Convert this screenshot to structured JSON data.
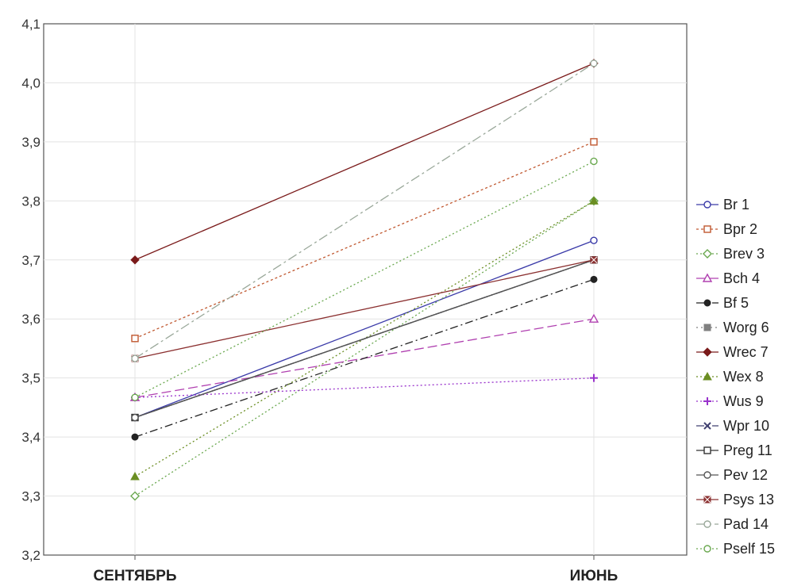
{
  "chart_data": {
    "type": "line",
    "title": "",
    "xlabel": "",
    "ylabel": "",
    "categories": [
      "СЕНТЯБРЬ",
      "ИЮНЬ"
    ],
    "ylim": [
      3.2,
      4.1
    ],
    "yticks": [
      "3,2",
      "3,3",
      "3,4",
      "3,5",
      "3,6",
      "3,7",
      "3,8",
      "3,9",
      "4,0",
      "4,1"
    ],
    "grid": true,
    "legend_position": "right",
    "series": [
      {
        "name": "Br 1",
        "values": [
          3.433,
          3.733
        ],
        "color": "#3a3aa8",
        "dash": "",
        "marker": "circle-open"
      },
      {
        "name": "Bpr 2",
        "values": [
          3.567,
          3.9
        ],
        "color": "#c05830",
        "dash": "3,3",
        "marker": "square-open"
      },
      {
        "name": "Brev 3",
        "values": [
          3.3,
          3.8
        ],
        "color": "#6aa84f",
        "dash": "2,3",
        "marker": "diamond-open"
      },
      {
        "name": "Bch 4",
        "values": [
          3.467,
          3.6
        ],
        "color": "#b040b0",
        "dash": "12,5",
        "marker": "triangle-open"
      },
      {
        "name": "Bf 5",
        "values": [
          3.4,
          3.667
        ],
        "color": "#222222",
        "dash": "10,4,2,4",
        "marker": "circle-filled"
      },
      {
        "name": "Worg 6",
        "values": [
          3.433,
          3.7
        ],
        "color": "#808080",
        "dash": "2,4",
        "marker": "square-filled"
      },
      {
        "name": "Wrec 7",
        "values": [
          3.7,
          4.033
        ],
        "color": "#7a1a1a",
        "dash": "",
        "marker": "diamond-filled"
      },
      {
        "name": "Wex 8",
        "values": [
          3.333,
          3.8
        ],
        "color": "#6b8e23",
        "dash": "2,3",
        "marker": "triangle-filled"
      },
      {
        "name": "Wus 9",
        "values": [
          3.467,
          3.5
        ],
        "color": "#9932cc",
        "dash": "2,3",
        "marker": "plus"
      },
      {
        "name": "Wpr 10",
        "values": [
          3.433,
          3.7
        ],
        "color": "#404070",
        "dash": "10,4,2,4",
        "marker": "cross"
      },
      {
        "name": "Preg 11",
        "values": [
          3.433,
          3.7
        ],
        "color": "#333333",
        "dash": "",
        "marker": "square-open"
      },
      {
        "name": "Pev 12",
        "values": [
          3.433,
          3.7
        ],
        "color": "#555555",
        "dash": "",
        "marker": "circle-open"
      },
      {
        "name": "Psys 13",
        "values": [
          3.533,
          3.7
        ],
        "color": "#8b3030",
        "dash": "",
        "marker": "x-square"
      },
      {
        "name": "Pad 14",
        "values": [
          3.533,
          4.033
        ],
        "color": "#9aa89a",
        "dash": "12,4,3,4",
        "marker": "circle-open"
      },
      {
        "name": "Pself 15",
        "values": [
          3.467,
          3.867
        ],
        "color": "#6aa84f",
        "dash": "2,3",
        "marker": "circle-open"
      }
    ]
  }
}
